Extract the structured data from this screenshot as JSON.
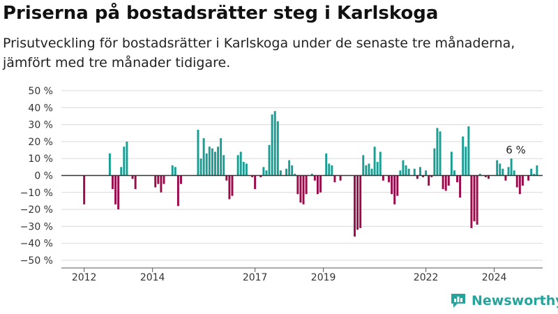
{
  "header": {
    "title": "Priserna på bostadsrätter steg i Karlskoga",
    "subtitle": "Prisutveckling för bostadsrätter i Karlskoga under de senaste tre månaderna, jämfört med tre månader tidigare."
  },
  "brand": {
    "name": "Newsworthy",
    "icon": "bar-chart-logo-icon"
  },
  "colors": {
    "positive": "#1a9e94",
    "negative": "#9b0a4a",
    "grid": "#d9d9d9",
    "zero_line": "#333333"
  },
  "chart_data": {
    "type": "bar",
    "ylim": [
      -50,
      50
    ],
    "yticks": [
      -50,
      -40,
      -30,
      -20,
      -10,
      0,
      10,
      20,
      30,
      40,
      50
    ],
    "ytick_labels": [
      "−50 %",
      "−40 %",
      "−30 %",
      "−20 %",
      "−10 %",
      "0 %",
      "10 %",
      "20 %",
      "30 %",
      "40 %",
      "50 %"
    ],
    "xlim": [
      "2011-05",
      "2025-06"
    ],
    "xticks": [
      "2012",
      "2014",
      "2017",
      "2019",
      "2022",
      "2024"
    ],
    "annotation": "6 %",
    "series": [
      {
        "values": [
          [
            "2012-01",
            -17
          ],
          [
            "2012-02",
            0
          ],
          [
            "2012-03",
            0
          ],
          [
            "2012-04",
            0
          ],
          [
            "2012-05",
            0
          ],
          [
            "2012-06",
            0
          ],
          [
            "2012-07",
            0
          ],
          [
            "2012-08",
            0
          ],
          [
            "2012-09",
            0
          ],
          [
            "2012-10",
            13
          ],
          [
            "2012-11",
            -8
          ],
          [
            "2012-12",
            -17
          ],
          [
            "2013-01",
            -20
          ],
          [
            "2013-02",
            5
          ],
          [
            "2013-03",
            17
          ],
          [
            "2013-04",
            20
          ],
          [
            "2013-05",
            0
          ],
          [
            "2013-06",
            -2
          ],
          [
            "2013-07",
            -8
          ],
          [
            "2013-08",
            0
          ],
          [
            "2013-09",
            0
          ],
          [
            "2013-10",
            0
          ],
          [
            "2013-11",
            0
          ],
          [
            "2013-12",
            0
          ],
          [
            "2014-01",
            0
          ],
          [
            "2014-02",
            -7
          ],
          [
            "2014-03",
            -5
          ],
          [
            "2014-04",
            -10
          ],
          [
            "2014-05",
            -5
          ],
          [
            "2014-06",
            0
          ],
          [
            "2014-07",
            0
          ],
          [
            "2014-08",
            6
          ],
          [
            "2014-09",
            5
          ],
          [
            "2014-10",
            -18
          ],
          [
            "2014-11",
            -5
          ],
          [
            "2014-12",
            0
          ],
          [
            "2015-01",
            0
          ],
          [
            "2015-02",
            0
          ],
          [
            "2015-03",
            0
          ],
          [
            "2015-04",
            0
          ],
          [
            "2015-05",
            27
          ],
          [
            "2015-06",
            10
          ],
          [
            "2015-07",
            22
          ],
          [
            "2015-08",
            13
          ],
          [
            "2015-09",
            17
          ],
          [
            "2015-10",
            16
          ],
          [
            "2015-11",
            14
          ],
          [
            "2015-12",
            17
          ],
          [
            "2016-01",
            22
          ],
          [
            "2016-02",
            12
          ],
          [
            "2016-03",
            -3
          ],
          [
            "2016-04",
            -14
          ],
          [
            "2016-05",
            -12
          ],
          [
            "2016-06",
            0
          ],
          [
            "2016-07",
            12
          ],
          [
            "2016-08",
            14
          ],
          [
            "2016-09",
            8
          ],
          [
            "2016-10",
            7
          ],
          [
            "2016-11",
            0
          ],
          [
            "2016-12",
            -1
          ],
          [
            "2017-01",
            -8
          ],
          [
            "2017-02",
            0
          ],
          [
            "2017-03",
            -1
          ],
          [
            "2017-04",
            5
          ],
          [
            "2017-05",
            3
          ],
          [
            "2017-06",
            18
          ],
          [
            "2017-07",
            36
          ],
          [
            "2017-08",
            38
          ],
          [
            "2017-09",
            32
          ],
          [
            "2017-10",
            3
          ],
          [
            "2017-11",
            0
          ],
          [
            "2017-12",
            4
          ],
          [
            "2018-01",
            9
          ],
          [
            "2018-02",
            6
          ],
          [
            "2018-03",
            1
          ],
          [
            "2018-04",
            -11
          ],
          [
            "2018-05",
            -16
          ],
          [
            "2018-06",
            -17
          ],
          [
            "2018-07",
            -11
          ],
          [
            "2018-08",
            0
          ],
          [
            "2018-09",
            1
          ],
          [
            "2018-10",
            -3
          ],
          [
            "2018-11",
            -11
          ],
          [
            "2018-12",
            -10
          ],
          [
            "2019-01",
            0
          ],
          [
            "2019-02",
            13
          ],
          [
            "2019-03",
            7
          ],
          [
            "2019-04",
            6
          ],
          [
            "2019-05",
            -4
          ],
          [
            "2019-06",
            0
          ],
          [
            "2019-07",
            -3
          ],
          [
            "2019-08",
            0
          ],
          [
            "2019-09",
            0
          ],
          [
            "2019-10",
            0
          ],
          [
            "2019-11",
            0
          ],
          [
            "2019-12",
            -36
          ],
          [
            "2020-01",
            -32
          ],
          [
            "2020-02",
            -31
          ],
          [
            "2020-03",
            12
          ],
          [
            "2020-04",
            6
          ],
          [
            "2020-05",
            7
          ],
          [
            "2020-06",
            4
          ],
          [
            "2020-07",
            17
          ],
          [
            "2020-08",
            8
          ],
          [
            "2020-09",
            14
          ],
          [
            "2020-10",
            -3
          ],
          [
            "2020-11",
            0
          ],
          [
            "2020-12",
            -4
          ],
          [
            "2021-01",
            -11
          ],
          [
            "2021-02",
            -17
          ],
          [
            "2021-03",
            -12
          ],
          [
            "2021-04",
            3
          ],
          [
            "2021-05",
            9
          ],
          [
            "2021-06",
            6
          ],
          [
            "2021-07",
            4
          ],
          [
            "2021-08",
            0
          ],
          [
            "2021-09",
            4
          ],
          [
            "2021-10",
            -2
          ],
          [
            "2021-11",
            5
          ],
          [
            "2021-12",
            -1
          ],
          [
            "2022-01",
            3
          ],
          [
            "2022-02",
            -6
          ],
          [
            "2022-03",
            -1
          ],
          [
            "2022-04",
            16
          ],
          [
            "2022-05",
            28
          ],
          [
            "2022-06",
            26
          ],
          [
            "2022-07",
            -8
          ],
          [
            "2022-08",
            -9
          ],
          [
            "2022-09",
            -6
          ],
          [
            "2022-10",
            14
          ],
          [
            "2022-11",
            3
          ],
          [
            "2022-12",
            -4
          ],
          [
            "2023-01",
            -13
          ],
          [
            "2023-02",
            23
          ],
          [
            "2023-03",
            17
          ],
          [
            "2023-04",
            29
          ],
          [
            "2023-05",
            -31
          ],
          [
            "2023-06",
            -27
          ],
          [
            "2023-07",
            -29
          ],
          [
            "2023-08",
            1
          ],
          [
            "2023-09",
            0
          ],
          [
            "2023-10",
            -1
          ],
          [
            "2023-11",
            -2
          ],
          [
            "2023-12",
            0
          ],
          [
            "2024-01",
            0
          ],
          [
            "2024-02",
            9
          ],
          [
            "2024-03",
            7
          ],
          [
            "2024-04",
            4
          ],
          [
            "2024-05",
            -3
          ],
          [
            "2024-06",
            5
          ],
          [
            "2024-07",
            10
          ],
          [
            "2024-08",
            3
          ],
          [
            "2024-09",
            -7
          ],
          [
            "2024-10",
            -11
          ],
          [
            "2024-11",
            -6
          ],
          [
            "2024-12",
            0
          ],
          [
            "2025-01",
            -3
          ],
          [
            "2025-02",
            4
          ],
          [
            "2025-03",
            1
          ],
          [
            "2025-04",
            6
          ]
        ]
      }
    ]
  }
}
